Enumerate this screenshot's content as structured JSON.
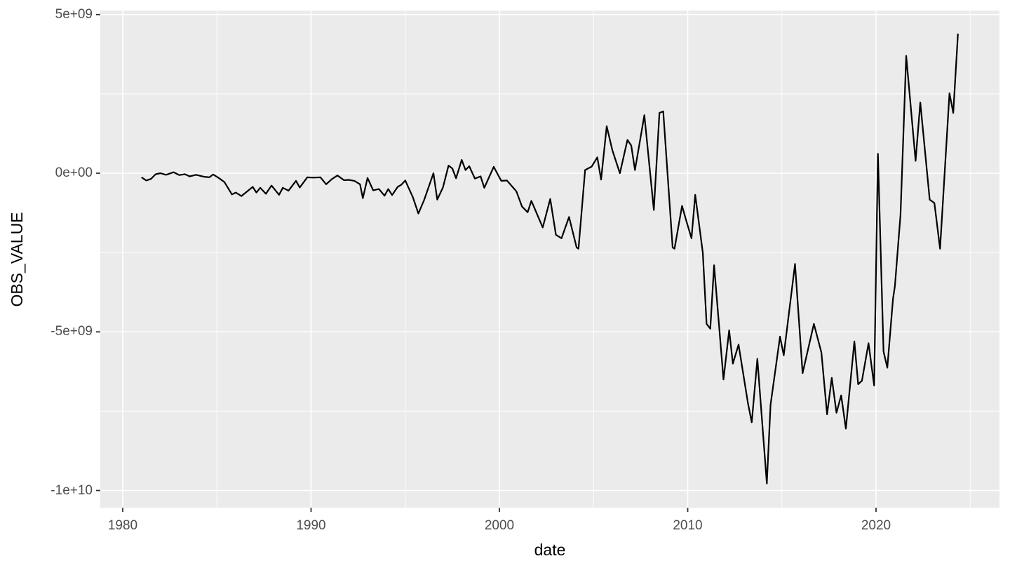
{
  "chart_data": {
    "type": "line",
    "title": "",
    "xlabel": "date",
    "ylabel": "OBS_VALUE",
    "grid": true,
    "legend_position": "none",
    "panel_background": "#EBEBEB",
    "grid_color": "#FFFFFF",
    "line_color": "#000000",
    "tick_label_color": "#4d4d4d",
    "tick_mark_color": "#333333",
    "xlim": [
      1978.8,
      2026.6
    ],
    "ylim_billions": [
      -10.5,
      5.15
    ],
    "y_unit": "1e+09",
    "x_axis": {
      "major_ticks": [
        {
          "value": 1980,
          "label": "1980"
        },
        {
          "value": 1990,
          "label": "1990"
        },
        {
          "value": 2000,
          "label": "2000"
        },
        {
          "value": 2010,
          "label": "2010"
        },
        {
          "value": 2020,
          "label": "2020"
        }
      ],
      "minor_ticks": [
        1985,
        1995,
        2005,
        2015,
        2025
      ]
    },
    "y_axis": {
      "major_ticks": [
        {
          "value": 5,
          "label": "5e+09"
        },
        {
          "value": 0,
          "label": "0e+00"
        },
        {
          "value": -5,
          "label": "-5e+09"
        },
        {
          "value": -10,
          "label": "-1e+10"
        }
      ],
      "minor_ticks": [
        2.5,
        -2.5,
        -7.5
      ]
    },
    "series": [
      {
        "name": "OBS_VALUE",
        "points_year_billions": [
          [
            1981.0,
            -0.13
          ],
          [
            1981.25,
            -0.23
          ],
          [
            1981.5,
            -0.18
          ],
          [
            1981.75,
            -0.03
          ],
          [
            1982.0,
            0.0
          ],
          [
            1982.3,
            -0.05
          ],
          [
            1982.7,
            0.03
          ],
          [
            1983.0,
            -0.06
          ],
          [
            1983.3,
            -0.03
          ],
          [
            1983.55,
            -0.1
          ],
          [
            1983.9,
            -0.05
          ],
          [
            1984.3,
            -0.11
          ],
          [
            1984.6,
            -0.13
          ],
          [
            1984.8,
            -0.04
          ],
          [
            1985.1,
            -0.15
          ],
          [
            1985.4,
            -0.28
          ],
          [
            1985.8,
            -0.67
          ],
          [
            1986.0,
            -0.61
          ],
          [
            1986.3,
            -0.72
          ],
          [
            1986.9,
            -0.43
          ],
          [
            1987.1,
            -0.61
          ],
          [
            1987.3,
            -0.46
          ],
          [
            1987.6,
            -0.65
          ],
          [
            1987.9,
            -0.39
          ],
          [
            1988.3,
            -0.68
          ],
          [
            1988.5,
            -0.46
          ],
          [
            1988.8,
            -0.55
          ],
          [
            1989.2,
            -0.24
          ],
          [
            1989.4,
            -0.45
          ],
          [
            1989.8,
            -0.13
          ],
          [
            1990.1,
            -0.14
          ],
          [
            1990.5,
            -0.13
          ],
          [
            1990.8,
            -0.35
          ],
          [
            1991.1,
            -0.19
          ],
          [
            1991.4,
            -0.07
          ],
          [
            1991.75,
            -0.22
          ],
          [
            1992.0,
            -0.21
          ],
          [
            1992.3,
            -0.24
          ],
          [
            1992.6,
            -0.35
          ],
          [
            1992.75,
            -0.79
          ],
          [
            1993.0,
            -0.15
          ],
          [
            1993.3,
            -0.54
          ],
          [
            1993.6,
            -0.5
          ],
          [
            1993.9,
            -0.71
          ],
          [
            1994.1,
            -0.5
          ],
          [
            1994.3,
            -0.69
          ],
          [
            1994.6,
            -0.43
          ],
          [
            1994.8,
            -0.36
          ],
          [
            1995.0,
            -0.23
          ],
          [
            1995.4,
            -0.75
          ],
          [
            1995.7,
            -1.27
          ],
          [
            1996.0,
            -0.85
          ],
          [
            1996.5,
            0.0
          ],
          [
            1996.7,
            -0.83
          ],
          [
            1997.0,
            -0.45
          ],
          [
            1997.3,
            0.24
          ],
          [
            1997.5,
            0.15
          ],
          [
            1997.7,
            -0.16
          ],
          [
            1998.0,
            0.42
          ],
          [
            1998.2,
            0.1
          ],
          [
            1998.4,
            0.22
          ],
          [
            1998.7,
            -0.17
          ],
          [
            1999.0,
            -0.1
          ],
          [
            1999.2,
            -0.46
          ],
          [
            1999.7,
            0.2
          ],
          [
            2000.1,
            -0.24
          ],
          [
            2000.4,
            -0.23
          ],
          [
            2000.9,
            -0.57
          ],
          [
            2001.2,
            -1.05
          ],
          [
            2001.5,
            -1.23
          ],
          [
            2001.7,
            -0.87
          ],
          [
            2002.3,
            -1.71
          ],
          [
            2002.7,
            -0.81
          ],
          [
            2003.0,
            -1.94
          ],
          [
            2003.3,
            -2.05
          ],
          [
            2003.7,
            -1.38
          ],
          [
            2004.1,
            -2.34
          ],
          [
            2004.2,
            -2.38
          ],
          [
            2004.55,
            0.1
          ],
          [
            2004.9,
            0.21
          ],
          [
            2005.2,
            0.5
          ],
          [
            2005.4,
            -0.2
          ],
          [
            2005.7,
            1.48
          ],
          [
            2006.0,
            0.72
          ],
          [
            2006.4,
            0.0
          ],
          [
            2006.8,
            1.05
          ],
          [
            2007.0,
            0.87
          ],
          [
            2007.2,
            0.1
          ],
          [
            2007.7,
            1.83
          ],
          [
            2008.2,
            -1.16
          ],
          [
            2008.5,
            1.9
          ],
          [
            2008.7,
            1.95
          ],
          [
            2009.2,
            -2.34
          ],
          [
            2009.3,
            -2.38
          ],
          [
            2009.7,
            -1.03
          ],
          [
            2009.9,
            -1.45
          ],
          [
            2010.2,
            -2.05
          ],
          [
            2010.4,
            -0.68
          ],
          [
            2010.8,
            -2.5
          ],
          [
            2011.0,
            -4.75
          ],
          [
            2011.2,
            -4.9
          ],
          [
            2011.4,
            -2.9
          ],
          [
            2011.9,
            -6.5
          ],
          [
            2012.2,
            -4.95
          ],
          [
            2012.4,
            -6.0
          ],
          [
            2012.7,
            -5.4
          ],
          [
            2013.2,
            -7.25
          ],
          [
            2013.4,
            -7.85
          ],
          [
            2013.7,
            -5.85
          ],
          [
            2014.2,
            -9.78
          ],
          [
            2014.4,
            -7.3
          ],
          [
            2014.9,
            -5.15
          ],
          [
            2015.1,
            -5.74
          ],
          [
            2015.7,
            -2.86
          ],
          [
            2016.1,
            -6.3
          ],
          [
            2016.7,
            -4.75
          ],
          [
            2017.1,
            -5.65
          ],
          [
            2017.4,
            -7.6
          ],
          [
            2017.65,
            -6.45
          ],
          [
            2017.9,
            -7.55
          ],
          [
            2018.15,
            -7.0
          ],
          [
            2018.4,
            -8.05
          ],
          [
            2018.85,
            -5.3
          ],
          [
            2019.05,
            -6.65
          ],
          [
            2019.25,
            -6.54
          ],
          [
            2019.6,
            -5.36
          ],
          [
            2019.9,
            -6.69
          ],
          [
            2020.1,
            0.61
          ],
          [
            2020.4,
            -5.62
          ],
          [
            2020.6,
            -6.13
          ],
          [
            2020.9,
            -3.96
          ],
          [
            2021.0,
            -3.56
          ],
          [
            2021.3,
            -1.31
          ],
          [
            2021.6,
            3.7
          ],
          [
            2022.1,
            0.39
          ],
          [
            2022.35,
            2.23
          ],
          [
            2022.85,
            -0.83
          ],
          [
            2023.1,
            -0.94
          ],
          [
            2023.4,
            -2.38
          ],
          [
            2023.9,
            2.52
          ],
          [
            2024.1,
            1.9
          ],
          [
            2024.35,
            4.4
          ]
        ]
      }
    ]
  }
}
